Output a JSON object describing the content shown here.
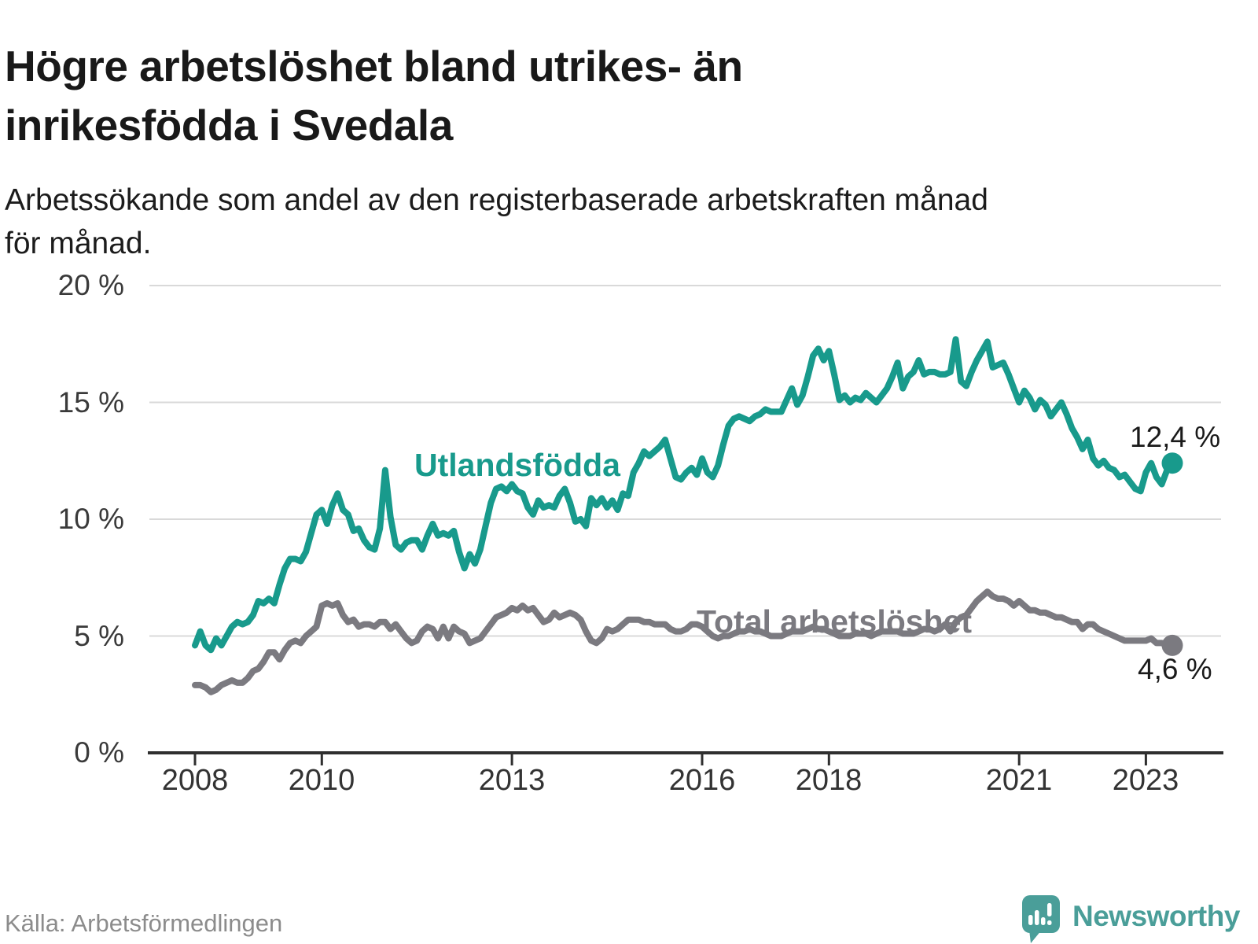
{
  "header": {
    "title_lines": [
      "Högre arbetslöshet bland utrikes- än",
      "inrikesfödda i Svedala"
    ],
    "subtitle_lines": [
      "Arbetssökande som andel av den registerbaserade arbetskraften månad",
      "för månad."
    ]
  },
  "chart_data": {
    "type": "line",
    "unit": "%",
    "frequency": "monthly",
    "x_start": "2008-01",
    "x_end": "2023-06",
    "ylim": [
      0,
      20
    ],
    "grid": "horizontal",
    "x_ticks": [
      2008,
      2010,
      2013,
      2016,
      2018,
      2021,
      2023
    ],
    "y_ticks": [
      {
        "value": 0,
        "label": "0 %"
      },
      {
        "value": 5,
        "label": "5 %"
      },
      {
        "value": 10,
        "label": "10 %"
      },
      {
        "value": 15,
        "label": "15 %"
      },
      {
        "value": 20,
        "label": "20 %"
      }
    ],
    "series": [
      {
        "name": "Utlandsfödda",
        "color": "#189a8c",
        "end_label": "12,4 %",
        "values": [
          4.6,
          5.2,
          4.6,
          4.4,
          4.9,
          4.6,
          5.0,
          5.4,
          5.6,
          5.5,
          5.6,
          5.9,
          6.5,
          6.4,
          6.6,
          6.4,
          7.2,
          7.9,
          8.3,
          8.3,
          8.2,
          8.6,
          9.4,
          10.2,
          10.4,
          9.8,
          10.6,
          11.1,
          10.4,
          10.2,
          9.5,
          9.6,
          9.1,
          8.8,
          8.7,
          9.6,
          12.1,
          10.1,
          8.9,
          8.7,
          9.0,
          9.1,
          9.1,
          8.7,
          9.3,
          9.8,
          9.3,
          9.4,
          9.3,
          9.5,
          8.6,
          7.9,
          8.5,
          8.1,
          8.7,
          9.7,
          10.7,
          11.3,
          11.4,
          11.2,
          11.5,
          11.2,
          11.1,
          10.5,
          10.2,
          10.8,
          10.5,
          10.6,
          10.5,
          11.0,
          11.3,
          10.7,
          9.9,
          10.0,
          9.7,
          10.9,
          10.6,
          10.9,
          10.5,
          10.8,
          10.4,
          11.1,
          11.0,
          12.0,
          12.4,
          12.9,
          12.7,
          12.9,
          13.1,
          13.4,
          12.6,
          11.8,
          11.7,
          12.0,
          12.2,
          11.9,
          12.6,
          12.0,
          11.8,
          12.3,
          13.2,
          14.0,
          14.3,
          14.4,
          14.3,
          14.2,
          14.4,
          14.5,
          14.7,
          14.6,
          14.6,
          14.6,
          15.1,
          15.6,
          14.9,
          15.3,
          16.1,
          17.0,
          17.3,
          16.8,
          17.2,
          16.2,
          15.1,
          15.3,
          15.0,
          15.2,
          15.1,
          15.4,
          15.2,
          15.0,
          15.3,
          15.6,
          16.1,
          16.7,
          15.6,
          16.1,
          16.3,
          16.8,
          16.2,
          16.3,
          16.3,
          16.2,
          16.2,
          16.3,
          17.7,
          15.9,
          15.7,
          16.3,
          16.8,
          17.2,
          17.6,
          16.5,
          16.6,
          16.7,
          16.2,
          15.6,
          15.0,
          15.5,
          15.2,
          14.7,
          15.1,
          14.9,
          14.4,
          14.7,
          15.0,
          14.5,
          13.9,
          13.5,
          13.0,
          13.4,
          12.6,
          12.3,
          12.5,
          12.2,
          12.1,
          11.8,
          11.9,
          11.6,
          11.3,
          11.2,
          12.0,
          12.4,
          11.8,
          11.5,
          12.1,
          12.4
        ]
      },
      {
        "name": "Total arbetslöshet",
        "color": "#7b7a80",
        "end_label": "4,6 %",
        "values": [
          2.9,
          2.9,
          2.8,
          2.6,
          2.7,
          2.9,
          3.0,
          3.1,
          3.0,
          3.0,
          3.2,
          3.5,
          3.6,
          3.9,
          4.3,
          4.3,
          4.0,
          4.4,
          4.7,
          4.8,
          4.7,
          5.0,
          5.2,
          5.4,
          6.3,
          6.4,
          6.3,
          6.4,
          5.9,
          5.6,
          5.7,
          5.4,
          5.5,
          5.5,
          5.4,
          5.6,
          5.6,
          5.3,
          5.5,
          5.2,
          4.9,
          4.7,
          4.8,
          5.2,
          5.4,
          5.3,
          4.9,
          5.4,
          4.9,
          5.4,
          5.2,
          5.1,
          4.7,
          4.8,
          4.9,
          5.2,
          5.5,
          5.8,
          5.9,
          6.0,
          6.2,
          6.1,
          6.3,
          6.1,
          6.2,
          5.9,
          5.6,
          5.7,
          6.0,
          5.8,
          5.9,
          6.0,
          5.9,
          5.7,
          5.2,
          4.8,
          4.7,
          4.9,
          5.3,
          5.2,
          5.3,
          5.5,
          5.7,
          5.7,
          5.7,
          5.6,
          5.6,
          5.5,
          5.5,
          5.5,
          5.3,
          5.2,
          5.2,
          5.3,
          5.5,
          5.5,
          5.4,
          5.2,
          5.0,
          4.9,
          5.0,
          5.0,
          5.1,
          5.2,
          5.2,
          5.3,
          5.2,
          5.2,
          5.1,
          5.0,
          5.0,
          5.0,
          5.1,
          5.2,
          5.2,
          5.2,
          5.3,
          5.4,
          5.3,
          5.3,
          5.2,
          5.1,
          5.0,
          5.0,
          5.0,
          5.1,
          5.1,
          5.1,
          5.0,
          5.1,
          5.2,
          5.2,
          5.2,
          5.2,
          5.1,
          5.1,
          5.1,
          5.2,
          5.3,
          5.3,
          5.2,
          5.3,
          5.5,
          5.2,
          5.6,
          5.8,
          5.9,
          6.2,
          6.5,
          6.7,
          6.9,
          6.7,
          6.6,
          6.6,
          6.5,
          6.3,
          6.5,
          6.3,
          6.1,
          6.1,
          6.0,
          6.0,
          5.9,
          5.8,
          5.8,
          5.7,
          5.6,
          5.6,
          5.3,
          5.5,
          5.5,
          5.3,
          5.2,
          5.1,
          5.0,
          4.9,
          4.8,
          4.8,
          4.8,
          4.8,
          4.8,
          4.9,
          4.7,
          4.7,
          4.6,
          4.6
        ]
      }
    ],
    "colors": {
      "grid": "#d9d9d9",
      "axis": "#2f2f2f",
      "tick_label": "#333333"
    }
  },
  "footer": {
    "source": "Källa: Arbetsförmedlingen",
    "brand": "Newsworthy"
  }
}
